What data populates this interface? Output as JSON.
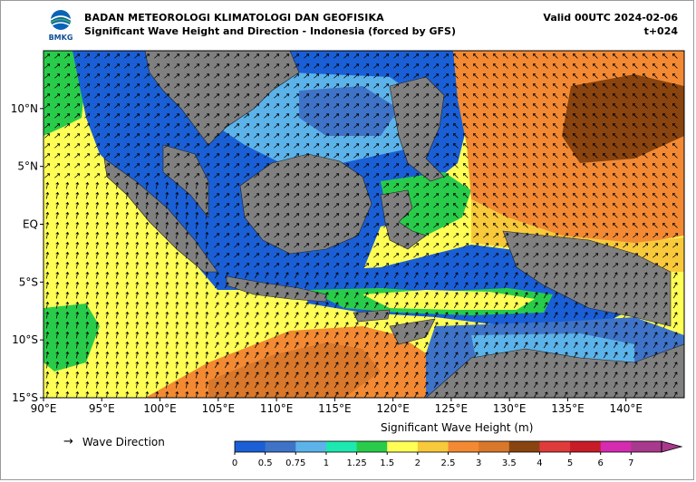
{
  "header": {
    "organization": "BADAN METEOROLOGI KLIMATOLOGI DAN GEOFISIKA",
    "subtitle": "Significant Wave Height and Direction - Indonesia (forced by GFS)",
    "valid": "Valid 00UTC 2024-02-06",
    "lead": "t+024",
    "logo_text": "BMKG"
  },
  "map": {
    "lon_range": [
      90,
      145
    ],
    "lat_range": [
      -15,
      15
    ],
    "lon_ticks": [
      "90°E",
      "95°E",
      "100°E",
      "105°E",
      "110°E",
      "115°E",
      "120°E",
      "125°E",
      "130°E",
      "135°E",
      "140°E"
    ],
    "lat_ticks": [
      "10°N",
      "5°N",
      "EQ",
      "5°S",
      "10°S",
      "15°S"
    ],
    "land_color": "#808080",
    "arrow_color": "#000000"
  },
  "colorbar": {
    "title": "Significant Wave Height (m)",
    "levels": [
      "0",
      "0.5",
      "0.75",
      "1",
      "1.25",
      "1.5",
      "2",
      "2.5",
      "3",
      "3.5",
      "4",
      "5",
      "6",
      "7"
    ],
    "colors": [
      "#1a5fd6",
      "#3f73c7",
      "#5cb3ea",
      "#1de8b0",
      "#28cc4a",
      "#ffff55",
      "#f8c93a",
      "#f38a33",
      "#d9772a",
      "#8a4410",
      "#e03b3b",
      "#c81c28",
      "#d52bb0",
      "#a8398c"
    ]
  },
  "legend": {
    "arrow_symbol": "→",
    "label": "Wave Direction"
  }
}
